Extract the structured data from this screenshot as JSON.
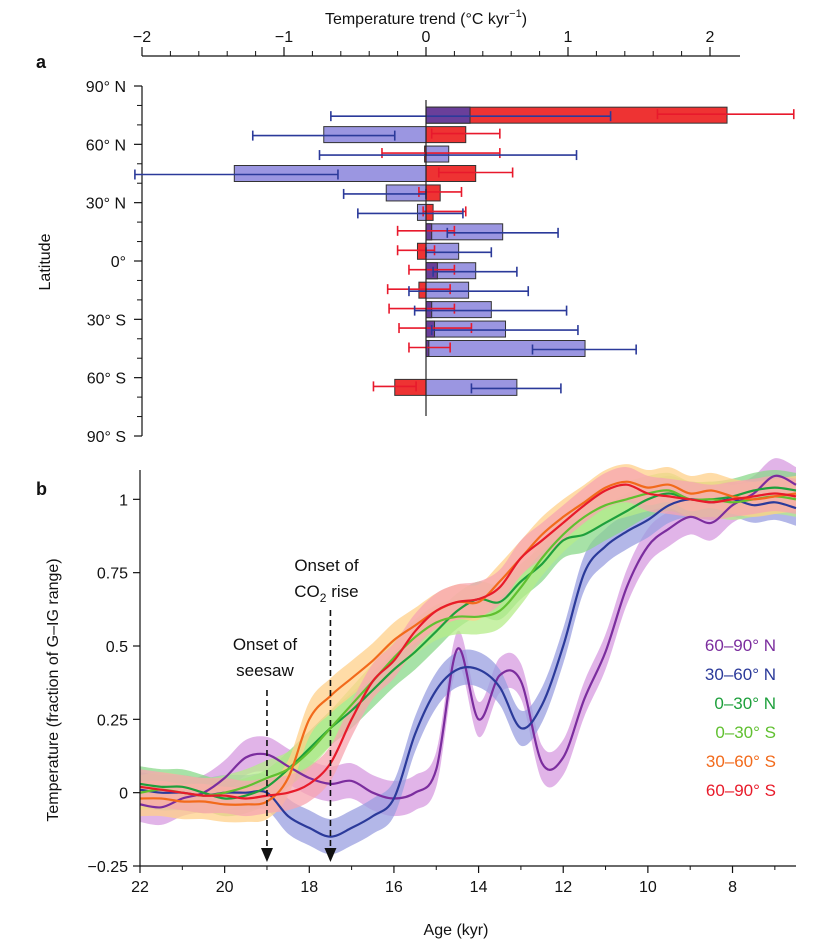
{
  "figure": {
    "panel_a_label": "a",
    "panel_b_label": "b"
  },
  "chart_data": [
    {
      "type": "bar",
      "orientation": "horizontal",
      "title": "",
      "xlabel": "Temperature trend (°C kyr",
      "xlabel_sup": "−1",
      "xlabel_close": ")",
      "ylabel": "Latitude",
      "xlim": [
        -2,
        2.2
      ],
      "ylim": [
        -90,
        90
      ],
      "x_ticks": [
        -2,
        -1,
        0,
        1,
        2
      ],
      "x_tick_labels": [
        "−2",
        "−1",
        "0",
        "1",
        "2"
      ],
      "y_ticks": [
        90,
        60,
        30,
        0,
        -30,
        -60,
        -90
      ],
      "y_tick_labels": [
        "90° N",
        "60° N",
        "30° N",
        "0°",
        "30° S",
        "60° S",
        "90° S"
      ],
      "grid": false,
      "colors": {
        "red": "#ee3333",
        "blue": "#8a84dc",
        "overlap": "#6a3f9a",
        "dark_blue": "#23258a",
        "blue_err": "#2b3a9a",
        "red_err": "#e8192c"
      },
      "bands": [
        {
          "lat": 75,
          "red": 2.12,
          "red_err": [
            1.63,
            2.59
          ],
          "blue": 0.31,
          "blue_err": [
            -0.67,
            1.3
          ]
        },
        {
          "lat": 65,
          "red": 0.28,
          "red_err": [
            0.04,
            0.52
          ],
          "blue": -0.72,
          "blue_err": [
            -1.22,
            -0.22
          ]
        },
        {
          "lat": 55,
          "red": -0.01,
          "red_err": [
            -0.31,
            0.52
          ],
          "blue": 0.16,
          "blue_err": [
            -0.75,
            1.06
          ]
        },
        {
          "lat": 45,
          "red": 0.35,
          "red_err": [
            0.09,
            0.61
          ],
          "blue": -1.35,
          "blue_err": [
            -2.05,
            -0.62
          ]
        },
        {
          "lat": 35,
          "red": 0.1,
          "red_err": [
            -0.05,
            0.25
          ],
          "blue": -0.28,
          "blue_err": [
            -0.58,
            0.0
          ]
        },
        {
          "lat": 25,
          "red": 0.05,
          "red_err": [
            -0.02,
            0.28
          ],
          "blue": -0.06,
          "blue_err": [
            -0.48,
            0.26
          ]
        },
        {
          "lat": 15,
          "red": 0.04,
          "red_err": [
            -0.2,
            0.2
          ],
          "blue": 0.54,
          "blue_err": [
            0.15,
            0.93
          ]
        },
        {
          "lat": 5,
          "red": -0.06,
          "red_err": [
            -0.2,
            0.06
          ],
          "blue": 0.23,
          "blue_err": [
            0.0,
            0.46
          ]
        },
        {
          "lat": -5,
          "red": 0.08,
          "red_err": [
            -0.12,
            0.2
          ],
          "blue": 0.35,
          "blue_err": [
            0.05,
            0.64
          ]
        },
        {
          "lat": -15,
          "red": -0.05,
          "red_err": [
            -0.27,
            0.17
          ],
          "blue": 0.3,
          "blue_err": [
            -0.12,
            0.72
          ]
        },
        {
          "lat": -25,
          "red": 0.04,
          "red_err": [
            -0.26,
            0.2
          ],
          "blue": 0.46,
          "blue_err": [
            -0.08,
            0.99
          ]
        },
        {
          "lat": -35,
          "red": 0.06,
          "red_err": [
            -0.19,
            0.32
          ],
          "blue": 0.56,
          "blue_err": [
            0.04,
            1.07
          ]
        },
        {
          "lat": -45,
          "red": 0.02,
          "red_err": [
            -0.12,
            0.17
          ],
          "blue": 1.12,
          "blue_err": [
            0.75,
            1.48
          ]
        },
        {
          "lat": -65,
          "red": -0.22,
          "red_err": [
            -0.37,
            -0.07
          ],
          "blue": 0.64,
          "blue_err": [
            0.32,
            0.95
          ]
        }
      ]
    },
    {
      "type": "line",
      "title": "",
      "xlabel": "Age (kyr)",
      "ylabel": "Temperature (fraction of G–IG range)",
      "xlim": [
        22,
        6.5
      ],
      "ylim": [
        -0.25,
        1.1
      ],
      "x_ticks": [
        22,
        20,
        18,
        16,
        14,
        12,
        10,
        8
      ],
      "x_tick_labels": [
        "22",
        "20",
        "18",
        "16",
        "14",
        "12",
        "10",
        "8"
      ],
      "y_ticks": [
        -0.25,
        0,
        0.25,
        0.5,
        0.75,
        1
      ],
      "y_tick_labels": [
        "−0.25",
        "0",
        "0.25",
        "0.5",
        "0.75",
        "1"
      ],
      "grid": false,
      "legend_position": "right",
      "x": [
        22,
        21.5,
        21,
        20.5,
        20,
        19.5,
        19,
        18.5,
        18,
        17.5,
        17,
        16.5,
        16,
        15.5,
        15,
        14.5,
        14,
        13.5,
        13,
        12.5,
        12,
        11.5,
        11,
        10.5,
        10,
        9.5,
        9,
        8.5,
        8,
        7.5,
        7,
        6.5
      ],
      "series": [
        {
          "name": "60–90° N",
          "color": "#7b2d9e",
          "band_color": "#d79be0",
          "values": [
            -0.04,
            -0.05,
            -0.02,
            0.0,
            0.05,
            0.12,
            0.13,
            0.09,
            0.05,
            0.03,
            0.04,
            0.0,
            -0.02,
            0.0,
            0.08,
            0.49,
            0.25,
            0.4,
            0.38,
            0.1,
            0.12,
            0.32,
            0.48,
            0.7,
            0.84,
            0.9,
            0.94,
            0.92,
            0.98,
            1.02,
            1.08,
            1.05
          ]
        },
        {
          "name": "30–60° N",
          "color": "#2b3a9a",
          "band_color": "#9a9fe0",
          "values": [
            0.01,
            0.0,
            0.0,
            -0.01,
            0.0,
            0.0,
            0.0,
            -0.08,
            -0.12,
            -0.15,
            -0.12,
            -0.08,
            -0.02,
            0.2,
            0.35,
            0.42,
            0.42,
            0.36,
            0.22,
            0.3,
            0.5,
            0.75,
            0.84,
            0.89,
            0.93,
            0.98,
            1.0,
            0.99,
            1.0,
            0.98,
            0.99,
            0.97
          ]
        },
        {
          "name": "0–30° N",
          "color": "#1ea03c",
          "band_color": "#8ad88a",
          "values": [
            0.03,
            0.02,
            0.02,
            0.0,
            -0.02,
            -0.01,
            0.02,
            0.08,
            0.15,
            0.22,
            0.28,
            0.35,
            0.42,
            0.48,
            0.55,
            0.62,
            0.66,
            0.65,
            0.72,
            0.78,
            0.86,
            0.88,
            0.92,
            0.96,
            1.0,
            1.02,
            1.0,
            1.0,
            1.01,
            1.03,
            1.04,
            1.03
          ]
        },
        {
          "name": "0–30° S",
          "color": "#60c030",
          "band_color": "#b6ec8a",
          "values": [
            0.0,
            0.01,
            0.0,
            -0.01,
            0.0,
            0.02,
            0.05,
            0.08,
            0.14,
            0.22,
            0.3,
            0.38,
            0.46,
            0.53,
            0.58,
            0.6,
            0.6,
            0.62,
            0.7,
            0.8,
            0.88,
            0.94,
            0.98,
            1.0,
            1.02,
            1.03,
            1.0,
            1.0,
            0.99,
            1.0,
            1.01,
            1.0
          ]
        },
        {
          "name": "30–60° S",
          "color": "#f26a1b",
          "band_color": "#ffd08a",
          "values": [
            -0.02,
            -0.02,
            -0.03,
            -0.03,
            -0.04,
            -0.04,
            -0.03,
            0.05,
            0.25,
            0.33,
            0.39,
            0.45,
            0.52,
            0.57,
            0.62,
            0.65,
            0.65,
            0.72,
            0.8,
            0.88,
            0.94,
            0.99,
            1.04,
            1.06,
            1.04,
            1.05,
            1.02,
            1.03,
            1.01,
            1.0,
            1.01,
            1.02
          ]
        },
        {
          "name": "60–90° S",
          "color": "#e81b2a",
          "band_color": "#f7a6b0",
          "values": [
            0.02,
            0.01,
            0.0,
            -0.01,
            -0.01,
            -0.02,
            -0.01,
            0.0,
            0.03,
            0.1,
            0.25,
            0.38,
            0.45,
            0.55,
            0.62,
            0.65,
            0.66,
            0.7,
            0.8,
            0.86,
            0.92,
            0.98,
            1.03,
            1.05,
            1.02,
            1.01,
            1.0,
            0.99,
            1.0,
            1.01,
            1.02,
            1.01
          ]
        }
      ],
      "band_halfwidth": 0.06,
      "annotations": [
        {
          "lines": [
            "Onset of",
            "seesaw"
          ],
          "x": 19.0
        },
        {
          "lines": [
            "Onset of",
            "CO",
            "2",
            " rise"
          ],
          "x": 17.5
        }
      ]
    }
  ]
}
